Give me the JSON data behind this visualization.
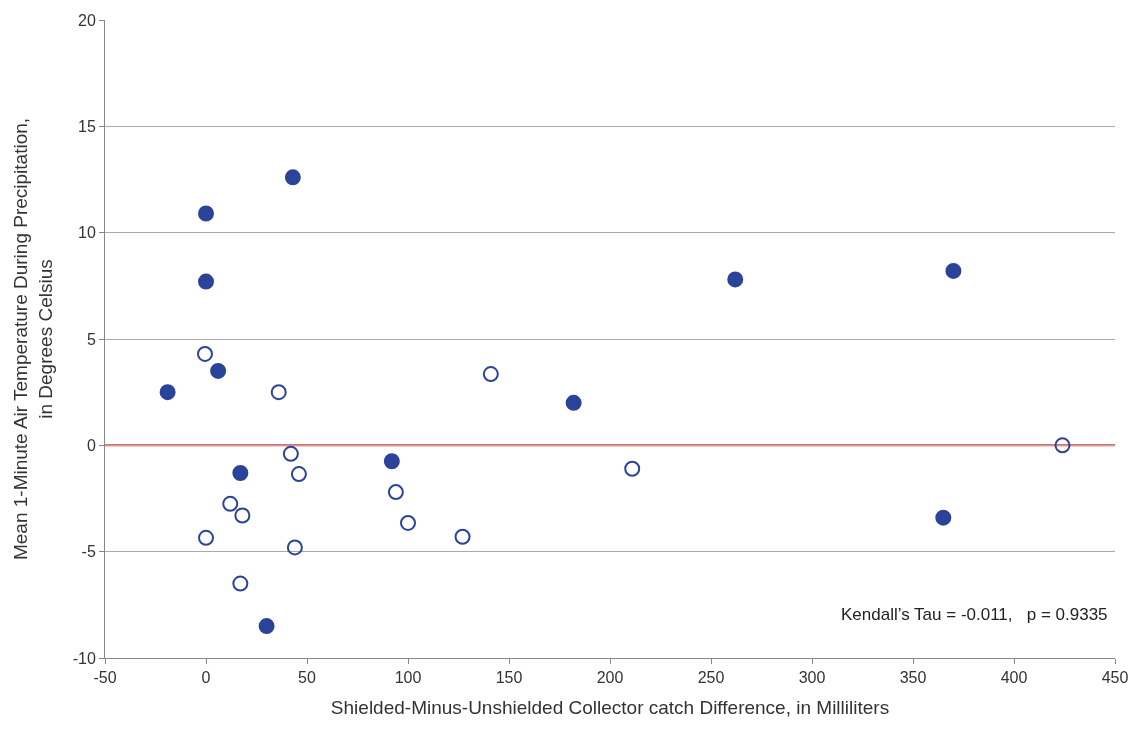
{
  "chart_data": {
    "type": "scatter",
    "xlabel": "Shielded-Minus-Unshielded Collector catch Difference, in Milliliters",
    "ylabel": "Mean 1-Minute Air Temperature During Precipitation,\nin Degrees Celsius",
    "xlim": [
      -50,
      450
    ],
    "xticks": [
      -50,
      0,
      50,
      100,
      150,
      200,
      250,
      300,
      350,
      400,
      450
    ],
    "ylim": [
      -10,
      20
    ],
    "yticks": [
      -10,
      -5,
      0,
      5,
      10,
      15,
      20
    ],
    "grid": "y",
    "series": [
      {
        "color": "#2b4399",
        "marker": "circle",
        "x": [
          -19,
          0,
          0,
          6,
          17,
          43,
          30,
          92,
          182,
          262,
          370,
          365
        ],
        "values": [
          2.5,
          10.9,
          7.7,
          3.5,
          -1.3,
          12.6,
          -8.5,
          -0.75,
          2.0,
          7.8,
          8.2,
          -3.4
        ]
      },
      {
        "color": "#2b4399",
        "marker": "circle-open",
        "x": [
          -0.5,
          36,
          42,
          46,
          12,
          18,
          0,
          44,
          17,
          94,
          100,
          127,
          141,
          211,
          424
        ],
        "values": [
          4.3,
          2.5,
          -0.4,
          -1.35,
          -2.75,
          -3.3,
          -4.35,
          -4.8,
          -6.5,
          -2.2,
          -3.65,
          -4.3,
          3.35,
          -1.1,
          0
        ]
      }
    ],
    "ref_lines": [
      {
        "axis": "y",
        "value": 0,
        "color": "#e8302a"
      }
    ],
    "annotations": [
      "Kendall’s Tau = -0.011,   p = 0.9335"
    ]
  }
}
